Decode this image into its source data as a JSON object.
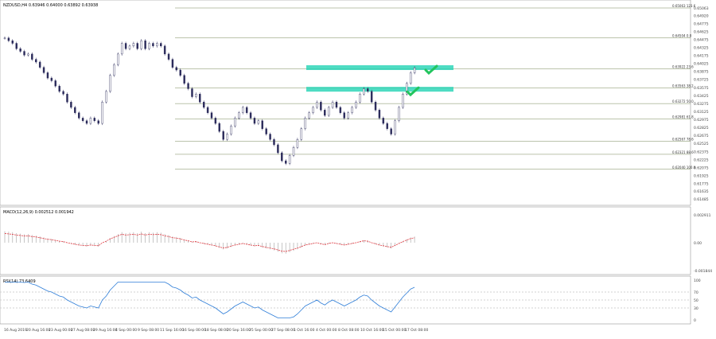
{
  "chart_data": [
    {
      "type": "candlestick",
      "symbol_header": "NZDUSD,H4  0.63946 0.64000 0.63892 0.63938",
      "ylim": [
        0.61485,
        0.65063
      ],
      "price_labels": [
        "0.65063",
        "0.64920",
        "0.64775",
        "0.64625",
        "0.64475",
        "0.64325",
        "0.64175",
        "0.64025",
        "0.63875",
        "0.63725",
        "0.63575",
        "0.63425",
        "0.63275",
        "0.63125",
        "0.62975",
        "0.62825",
        "0.62675",
        "0.62525",
        "0.62375",
        "0.62225",
        "0.62075",
        "0.61925",
        "0.61775",
        "0.61635",
        "0.61485"
      ],
      "current_price": "0.63938",
      "fibonacci": [
        {
          "price": 0.65063,
          "label": "0.65063  123.6"
        },
        {
          "price": 0.64504,
          "label": "0.64504  0.0"
        },
        {
          "price": 0.63922,
          "label": "0.63922  23.6"
        },
        {
          "price": 0.63563,
          "label": "0.63563  38.2"
        },
        {
          "price": 0.63272,
          "label": "0.63272  50.0"
        },
        {
          "price": 0.62981,
          "label": "0.62981  61.8"
        },
        {
          "price": 0.62567,
          "label": "0.62567  78.6"
        },
        {
          "price": 0.62321,
          "label": "0.62321  88.6"
        },
        {
          "price": 0.6204,
          "label": "0.62040  100.0"
        }
      ],
      "resistance_zones": [
        {
          "price": 0.63945,
          "color": "#22d3b4"
        },
        {
          "price": 0.6354,
          "color": "#22d3b4"
        }
      ],
      "ma_colors": {
        "fast": "#e0343c",
        "slow": "#4b3fbf",
        "long": "#22dede",
        "signal": "#c8c8c8"
      },
      "candle_closes": [
        0.645,
        0.6445,
        0.644,
        0.643,
        0.6425,
        0.6418,
        0.642,
        0.641,
        0.6405,
        0.6395,
        0.6385,
        0.6375,
        0.637,
        0.636,
        0.635,
        0.6345,
        0.633,
        0.632,
        0.631,
        0.63,
        0.6295,
        0.629,
        0.63,
        0.6295,
        0.629,
        0.633,
        0.635,
        0.638,
        0.64,
        0.642,
        0.644,
        0.643,
        0.6435,
        0.644,
        0.643,
        0.6445,
        0.643,
        0.644,
        0.6435,
        0.644,
        0.6435,
        0.642,
        0.641,
        0.6395,
        0.639,
        0.638,
        0.6365,
        0.6355,
        0.634,
        0.6345,
        0.633,
        0.632,
        0.631,
        0.63,
        0.629,
        0.6275,
        0.626,
        0.627,
        0.6285,
        0.63,
        0.631,
        0.632,
        0.631,
        0.63,
        0.629,
        0.6295,
        0.628,
        0.627,
        0.626,
        0.625,
        0.6235,
        0.622,
        0.6215,
        0.623,
        0.6245,
        0.626,
        0.628,
        0.63,
        0.631,
        0.632,
        0.633,
        0.6315,
        0.6305,
        0.632,
        0.633,
        0.632,
        0.631,
        0.63,
        0.631,
        0.632,
        0.633,
        0.6345,
        0.6355,
        0.635,
        0.633,
        0.6315,
        0.63,
        0.629,
        0.628,
        0.627,
        0.6295,
        0.632,
        0.6345,
        0.6365,
        0.6385,
        0.6394
      ],
      "x_labels": [
        "16 Aug 2019",
        "20 Aug 16:00",
        "23 Aug 00:00",
        "27 Aug 08:00",
        "29 Aug 16:00",
        "4 Sep 00:00",
        "9 Sep 08:00",
        "11 Sep 16:00",
        "16 Sep 00:00",
        "18 Sep 08:00",
        "20 Sep 16:00",
        "25 Sep 00:00",
        "27 Sep 08:00",
        "1 Oct 16:00",
        "4 Oct 00:00",
        "8 Oct 08:00",
        "10 Oct 16:00",
        "15 Oct 00:00",
        "17 Oct 08:00"
      ]
    },
    {
      "type": "bar",
      "header": "MACD(12,26,9) 0.002512 0.001942",
      "labels": [
        "0.002911",
        "0.00",
        "-0.001844"
      ],
      "ylim": [
        -0.001844,
        0.002911
      ],
      "signal_color": "#e0343c"
    },
    {
      "type": "line",
      "header": "RSI(14) 73.6409",
      "labels": [
        "100",
        "70",
        "50",
        "30",
        "0"
      ],
      "ylim": [
        0,
        100
      ],
      "levels": [
        70,
        50,
        30
      ],
      "color": "#2f7ed8"
    }
  ]
}
